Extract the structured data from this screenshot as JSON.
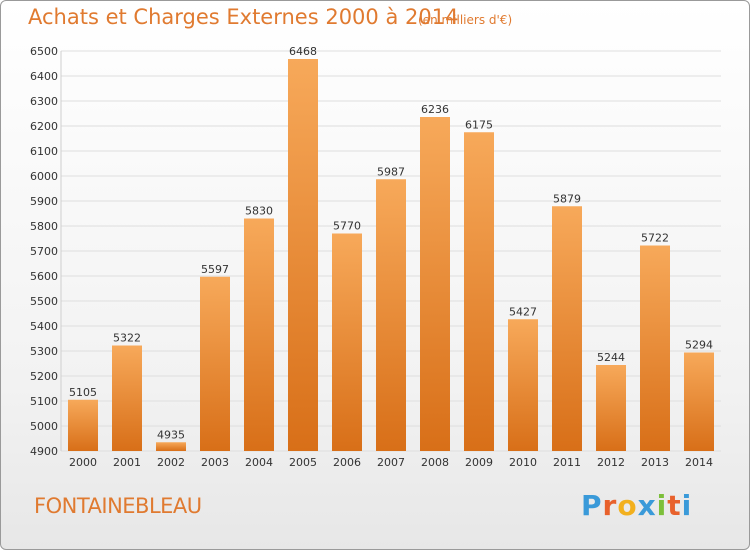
{
  "chart_data": {
    "type": "bar",
    "title": "Achats et Charges Externes 2000 à 2014",
    "subtitle": "(en milliers d'€)",
    "categories": [
      "2000",
      "2001",
      "2002",
      "2003",
      "2004",
      "2005",
      "2006",
      "2007",
      "2008",
      "2009",
      "2010",
      "2011",
      "2012",
      "2013",
      "2014"
    ],
    "values": [
      5105,
      5322,
      4935,
      5597,
      5830,
      6468,
      5770,
      5987,
      6236,
      6175,
      5427,
      5879,
      5244,
      5722,
      5294
    ],
    "ylim": [
      4900,
      6500
    ],
    "yticks": [
      4900,
      5000,
      5100,
      5200,
      5300,
      5400,
      5500,
      5600,
      5700,
      5800,
      5900,
      6000,
      6100,
      6200,
      6300,
      6400,
      6500
    ],
    "grid": true,
    "bar_color_top": "#f7a95a",
    "bar_color_bottom": "#d86f18"
  },
  "footer": {
    "place": "FONTAINEBLEAU",
    "brand": "Proxiti",
    "brand_colors": [
      "#3a9ad9",
      "#e8612c",
      "#f2b01e",
      "#3a9ad9",
      "#7cbf3a",
      "#e8612c"
    ]
  }
}
